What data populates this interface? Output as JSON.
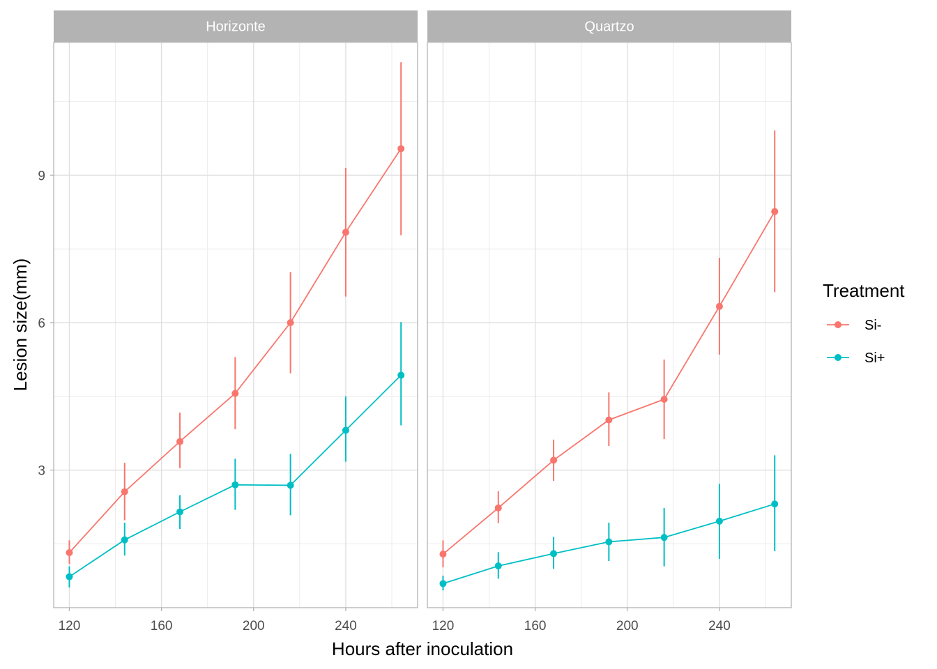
{
  "chart_data": {
    "type": "line",
    "facet_variable_values": [
      "Horizonte",
      "Quartzo"
    ],
    "xlabel": "Hours after inoculation",
    "ylabel": "Lesion size(mm)",
    "xlim": [
      113.2,
      271.2
    ],
    "ylim": [
      0.2,
      11.7
    ],
    "x_ticks": [
      120,
      160,
      200,
      240
    ],
    "y_ticks": [
      3,
      6,
      9
    ],
    "x_minor": [
      140,
      180,
      220,
      260
    ],
    "y_minor": [
      1.5,
      4.5,
      7.5,
      10.5
    ],
    "grid": true,
    "legend": {
      "title": "Treatment",
      "position": "right",
      "entries": [
        "Si-",
        "Si+"
      ]
    },
    "colors": {
      "Si-": "#F8766D",
      "Si+": "#00BFC4"
    },
    "x": [
      120,
      144,
      168,
      192,
      216,
      240,
      264
    ],
    "panels": [
      {
        "name": "Horizonte",
        "series": [
          {
            "name": "Si-",
            "values": [
              1.32,
              2.56,
              3.58,
              4.56,
              6.0,
              7.84,
              9.54
            ],
            "lower": [
              1.09,
              1.98,
              3.04,
              3.83,
              4.97,
              6.53,
              7.78
            ],
            "upper": [
              1.57,
              3.15,
              4.17,
              5.3,
              7.03,
              9.15,
              11.3
            ]
          },
          {
            "name": "Si+",
            "values": [
              0.83,
              1.58,
              2.15,
              2.7,
              2.69,
              3.81,
              4.93
            ],
            "lower": [
              0.61,
              1.26,
              1.8,
              2.19,
              2.08,
              3.17,
              3.91
            ],
            "upper": [
              1.04,
              1.93,
              2.49,
              3.23,
              3.33,
              4.5,
              6.01
            ]
          }
        ]
      },
      {
        "name": "Quartzo",
        "series": [
          {
            "name": "Si-",
            "values": [
              1.29,
              2.23,
              3.2,
              4.02,
              4.44,
              6.33,
              8.26
            ],
            "lower": [
              1.02,
              1.92,
              2.78,
              3.49,
              3.63,
              5.35,
              6.62
            ],
            "upper": [
              1.57,
              2.57,
              3.62,
              4.58,
              5.25,
              7.32,
              9.91
            ]
          },
          {
            "name": "Si+",
            "values": [
              0.69,
              1.05,
              1.3,
              1.54,
              1.63,
              1.96,
              2.31
            ],
            "lower": [
              0.55,
              0.79,
              0.99,
              1.15,
              1.04,
              1.19,
              1.35
            ],
            "upper": [
              0.85,
              1.33,
              1.64,
              1.93,
              2.23,
              2.72,
              3.3
            ]
          }
        ]
      }
    ]
  }
}
